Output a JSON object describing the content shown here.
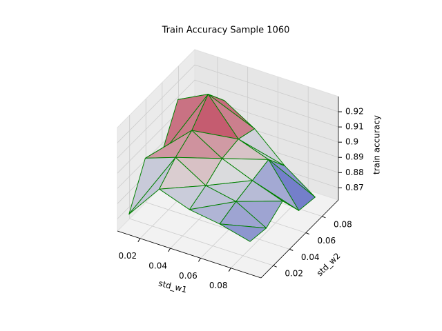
{
  "chart_data": {
    "type": "surface3d",
    "title": "Train Accuracy Sample 1060",
    "x_label": "std_w1",
    "y_label": "std_w2",
    "z_label": "train accuracy",
    "x": [
      0.01,
      0.03,
      0.05,
      0.07,
      0.09
    ],
    "y": [
      0.01,
      0.03,
      0.05,
      0.07,
      0.09
    ],
    "z": [
      [
        0.872,
        0.895,
        0.888,
        0.885,
        0.88
      ],
      [
        0.898,
        0.905,
        0.893,
        0.889,
        0.878
      ],
      [
        0.89,
        0.912,
        0.9,
        0.892,
        0.885
      ],
      [
        0.915,
        0.925,
        0.902,
        0.895,
        0.868
      ],
      [
        0.905,
        0.91,
        0.898,
        0.88,
        0.866
      ]
    ],
    "edge_color": "#008000",
    "colormap": "coolwarm",
    "xlim": [
      0.005,
      0.1
    ],
    "ylim": [
      0.005,
      0.1
    ],
    "zlim": [
      0.862,
      0.93
    ],
    "xticks": [
      0.02,
      0.04,
      0.06,
      0.08
    ],
    "yticks": [
      0.02,
      0.04,
      0.06,
      0.08
    ],
    "zticks": [
      0.87,
      0.88,
      0.89,
      0.9,
      0.91,
      0.92
    ],
    "grid": true
  }
}
